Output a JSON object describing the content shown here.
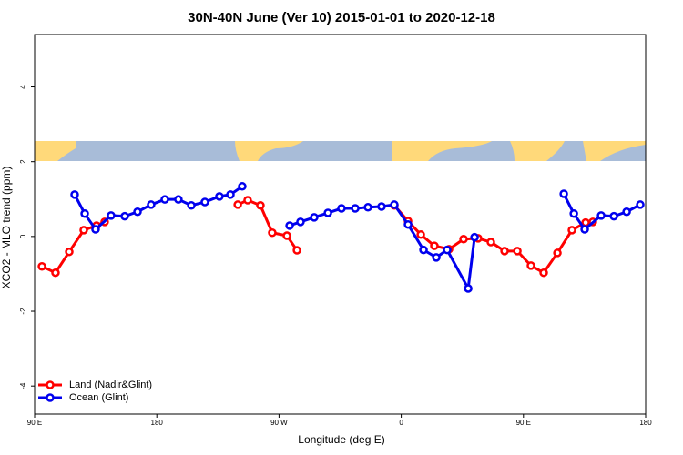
{
  "chart_data": {
    "type": "line",
    "title": "30N-40N June (Ver 10)   2015-01-01 to 2020-12-18",
    "xlabel": "Longitude (deg E)",
    "ylabel": "XCO2 - MLO trend (ppm)",
    "xlim": [
      90,
      540
    ],
    "ylim": [
      -4.75,
      5.4
    ],
    "xticks": [
      {
        "value": 90,
        "label": "90 E"
      },
      180,
      {
        "value": 270,
        "label": "90 W"
      },
      {
        "value": 360,
        "label": "0"
      },
      {
        "value": 450,
        "label": "90 E"
      },
      {
        "value": 540,
        "label": "180"
      }
    ],
    "yticks": [
      -4,
      -2,
      0,
      2,
      4
    ],
    "legend": "bottom-left",
    "series": [
      {
        "name": "Land (Nadir&Glint)",
        "color": "#ff0000",
        "x": [
          95.4,
          105.4,
          115.5,
          126.2,
          135.6,
          141.6,
          null,
          239.6,
          246.9,
          256.3,
          265.0,
          275.8,
          283.2,
          null,
          354.9,
          365.0,
          374.4,
          384.4,
          395.2,
          405.9,
          416.6,
          426.0,
          436.1,
          445.5,
          455.5,
          464.9,
          475.0,
          485.7,
          495.8,
          501.1
        ],
        "values": [
          -0.8,
          -0.97,
          -0.41,
          0.17,
          0.29,
          0.39,
          null,
          0.85,
          0.97,
          0.83,
          0.1,
          0.02,
          -0.37,
          null,
          0.83,
          0.41,
          0.05,
          -0.25,
          -0.34,
          -0.07,
          -0.05,
          -0.15,
          -0.39,
          -0.39,
          -0.78,
          -0.97,
          -0.44,
          0.17,
          0.37,
          0.39
        ]
      },
      {
        "name": "Ocean (Glint)",
        "color": "#0000ee",
        "x": [
          119.5,
          126.9,
          134.9,
          146.3,
          156.4,
          165.8,
          175.8,
          185.9,
          195.9,
          205.4,
          215.4,
          226.1,
          234.2,
          242.9,
          null,
          277.8,
          285.8,
          295.9,
          306.0,
          316.0,
          326.1,
          335.5,
          345.5,
          354.9,
          365.0,
          376.4,
          385.8,
          393.8,
          409.3,
          414.0,
          null,
          479.7,
          487.1,
          495.1,
          507.2,
          516.6,
          526.0,
          536.0
        ],
        "values": [
          1.12,
          0.61,
          0.19,
          0.56,
          0.54,
          0.66,
          0.85,
          0.99,
          0.99,
          0.83,
          0.92,
          1.07,
          1.12,
          1.34,
          null,
          0.29,
          0.39,
          0.51,
          0.63,
          0.75,
          0.75,
          0.78,
          0.8,
          0.85,
          0.32,
          -0.36,
          -0.56,
          -0.36,
          -1.39,
          -0.02,
          null,
          1.14,
          0.61,
          0.19,
          0.56,
          0.54,
          0.66,
          0.85
        ]
      }
    ]
  }
}
